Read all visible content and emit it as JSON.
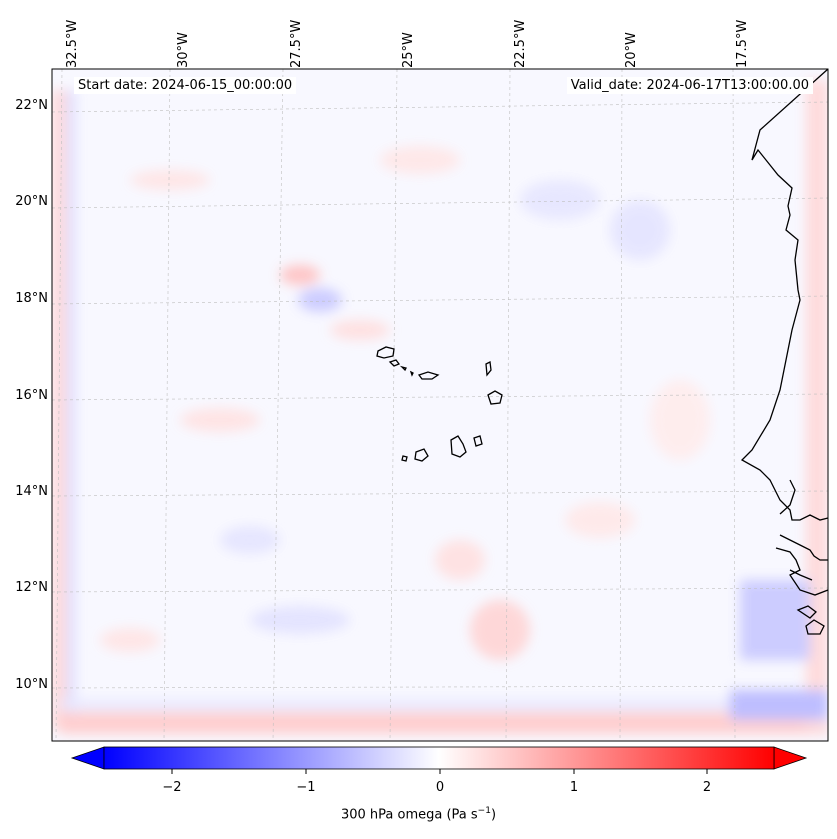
{
  "map": {
    "annotations": {
      "start_date": "Start date: 2024-06-15_00:00:00",
      "valid_date": "Valid_date: 2024-06-17T13:00:00.00"
    },
    "lon_labels": [
      "32.5°W",
      "30°W",
      "27.5°W",
      "25°W",
      "22.5°W",
      "20°W",
      "17.5°W"
    ],
    "lat_labels": [
      "22°N",
      "20°N",
      "18°N",
      "16°N",
      "14°N",
      "12°N",
      "10°N"
    ],
    "gridlines": true,
    "coastline_color": "#000000",
    "features": [
      "cape-verde-islands",
      "west-africa-coastline"
    ]
  },
  "colorbar": {
    "ticks": [
      "−2",
      "−1",
      "0",
      "1",
      "2"
    ],
    "label_main": "300 hPa omega (Pa s",
    "label_sup": "−1",
    "label_end": ")",
    "colors": {
      "negative": "#0000ff",
      "zero": "#ffffff",
      "positive": "#ff0000"
    },
    "extend": "both"
  }
}
